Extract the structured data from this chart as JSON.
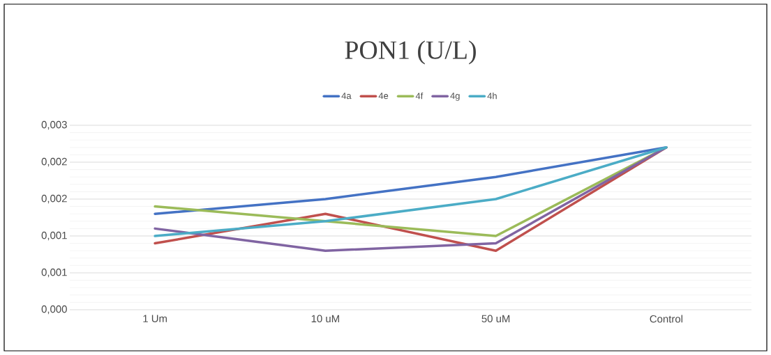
{
  "chart_data": {
    "type": "line",
    "title": "PON1 (U/L)",
    "categories": [
      "1 Um",
      "10 uM",
      "50 uM",
      "Control"
    ],
    "series": [
      {
        "name": "4a",
        "color": "#4472c4",
        "values": [
          0.0013,
          0.0015,
          0.0018,
          0.0022
        ]
      },
      {
        "name": "4e",
        "color": "#c0504d",
        "values": [
          0.0009,
          0.0013,
          0.0008,
          0.0022
        ]
      },
      {
        "name": "4f",
        "color": "#9bbb59",
        "values": [
          0.0014,
          0.0012,
          0.001,
          0.0022
        ]
      },
      {
        "name": "4g",
        "color": "#8064a2",
        "values": [
          0.0011,
          0.0008,
          0.0009,
          0.0022
        ]
      },
      {
        "name": "4h",
        "color": "#4bacc6",
        "values": [
          0.001,
          0.0012,
          0.0015,
          0.0022
        ]
      }
    ],
    "ylim": [
      0,
      0.0025
    ],
    "yticks": [
      {
        "value": 0,
        "label": "0,000"
      },
      {
        "value": 0.0005,
        "label": "0,001"
      },
      {
        "value": 0.001,
        "label": "0,001"
      },
      {
        "value": 0.0015,
        "label": "0,002"
      },
      {
        "value": 0.002,
        "label": "0,002"
      },
      {
        "value": 0.0025,
        "label": "0,003"
      }
    ],
    "grid": "y",
    "legend": "top",
    "marker": "none",
    "line_style": "solid"
  }
}
